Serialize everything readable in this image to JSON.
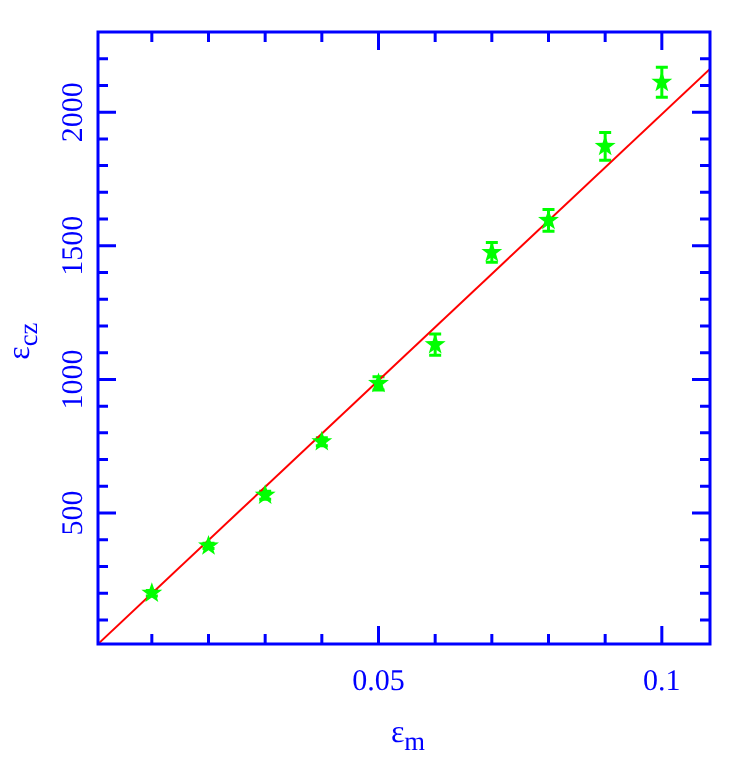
{
  "chart_data": {
    "type": "scatter",
    "xlabel": "ε$_{m}$",
    "ylabel": "ε$_{cz}$",
    "xlim": [
      0.0005,
      0.1085
    ],
    "ylim": [
      10,
      2300
    ],
    "xticks": [
      {
        "value": 0.01,
        "label": null
      },
      {
        "value": 0.02,
        "label": null
      },
      {
        "value": 0.03,
        "label": null
      },
      {
        "value": 0.04,
        "label": null
      },
      {
        "value": 0.05,
        "label": "0.05"
      },
      {
        "value": 0.06,
        "label": null
      },
      {
        "value": 0.07,
        "label": null
      },
      {
        "value": 0.08,
        "label": null
      },
      {
        "value": 0.09,
        "label": null
      },
      {
        "value": 0.1,
        "label": "0.1"
      }
    ],
    "yticks": [
      {
        "value": 100,
        "label": null
      },
      {
        "value": 200,
        "label": null
      },
      {
        "value": 300,
        "label": null
      },
      {
        "value": 400,
        "label": null
      },
      500,
      {
        "value": 600,
        "label": null
      },
      {
        "value": 700,
        "label": null
      },
      {
        "value": 800,
        "label": null
      },
      {
        "value": 900,
        "label": null
      },
      1000,
      {
        "value": 1100,
        "label": null
      },
      {
        "value": 1200,
        "label": null
      },
      {
        "value": 1300,
        "label": null
      },
      {
        "value": 1400,
        "label": null
      },
      1500,
      {
        "value": 1600,
        "label": null
      },
      {
        "value": 1700,
        "label": null
      },
      {
        "value": 1800,
        "label": null
      },
      {
        "value": 1900,
        "label": null
      },
      2000,
      {
        "value": 2100,
        "label": null
      },
      {
        "value": 2200,
        "label": null
      }
    ],
    "grid": false,
    "legend": false,
    "series": [
      {
        "type": "scatter",
        "marker": "star",
        "color": "#00ff00",
        "x": [
          0.01,
          0.02,
          0.03,
          0.04,
          0.05,
          0.06,
          0.07,
          0.08,
          0.09,
          0.1
        ],
        "values": [
          200,
          377,
          567,
          767,
          985,
          1130,
          1475,
          1595,
          1872,
          2112
        ],
        "errors": [
          10,
          10,
          15,
          15,
          25,
          40,
          37,
          41,
          52,
          56
        ]
      },
      {
        "type": "line",
        "color": "#ff0000",
        "x": [
          0.0005,
          0.1085
        ],
        "values": [
          10,
          2162
        ]
      }
    ]
  }
}
